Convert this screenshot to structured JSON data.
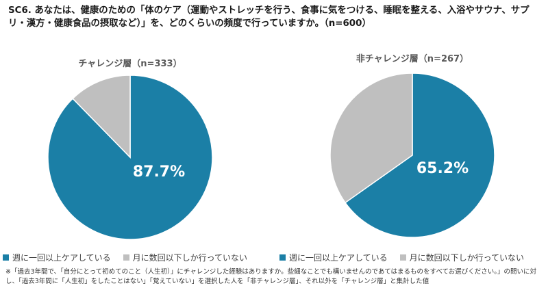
{
  "question": "SC6. あなたは、健康のための「体のケア（運動やストレッチを行う、食事に気をつける、睡眠を整える、入浴やサウナ、サプリ・漢方・健康食品の摂取など）」を、どのくらいの頻度で行っていますか。（n=600）",
  "colors": {
    "primary": "#1b7fa6",
    "secondary": "#bfbfbf"
  },
  "chart_data": [
    {
      "type": "pie",
      "title": "チャレンジ層（n=333）",
      "categories": [
        "週に一回以上ケアしている",
        "月に数回以下しか行っていない"
      ],
      "values": [
        87.7,
        12.3
      ],
      "data_labels": [
        "87.7%",
        ""
      ],
      "legend": "bottom"
    },
    {
      "type": "pie",
      "title": "非チャレンジ層（n=267）",
      "categories": [
        "週に一回以上ケアしている",
        "月に数回以下しか行っていない"
      ],
      "values": [
        65.2,
        34.8
      ],
      "data_labels": [
        "65.2%",
        ""
      ],
      "legend": "bottom"
    }
  ],
  "footnote": "※「過去3年間で、「自分にとって初めてのこと（人生初）」にチャレンジした経験はありますか。些細なことでも構いませんのであてはまるものをすべてお選びください。」の問いに対し、「過去3年間に「人生初」をしたことはない」「覚えていない」を選択した人を「非チャレンジ層」、それ以外を「チャレンジ層」と集計した値"
}
